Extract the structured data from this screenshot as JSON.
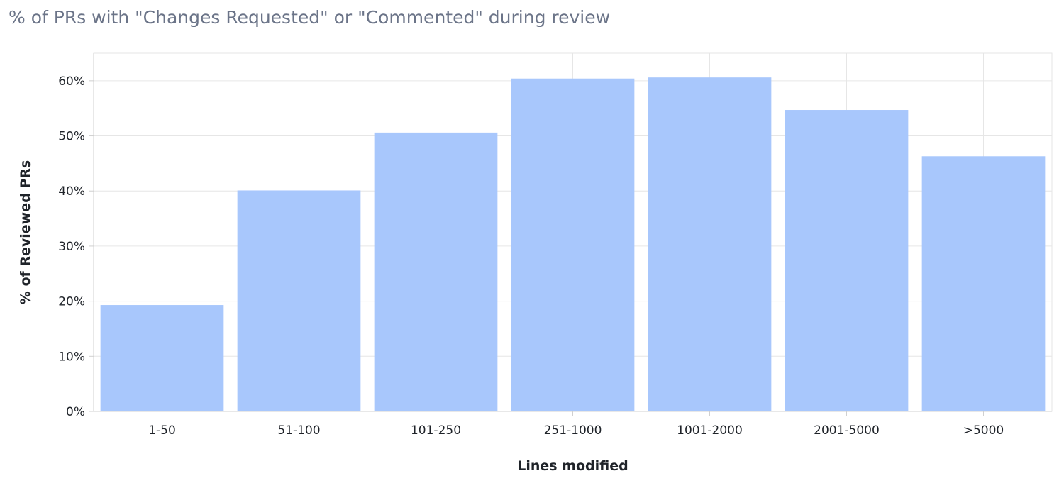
{
  "chart_data": {
    "type": "bar",
    "title": "% of PRs with \"Changes Requested\" or \"Commented\" during review",
    "xlabel": "Lines modified",
    "ylabel": "% of Reviewed PRs",
    "categories": [
      "1-50",
      "51-100",
      "101-250",
      "251-1000",
      "1001-2000",
      "2001-5000",
      ">5000"
    ],
    "values": [
      19.3,
      40.1,
      50.6,
      60.4,
      60.6,
      54.7,
      46.3
    ],
    "ylim": [
      0,
      65
    ],
    "yticks": [
      "0%",
      "10%",
      "20%",
      "30%",
      "40%",
      "50%",
      "60%"
    ],
    "ytick_values": [
      0,
      10,
      20,
      30,
      40,
      50,
      60
    ],
    "grid": true,
    "bar_color": "#a8c7fc",
    "grid_color": "#e6e6e6",
    "axis_color": "#d0d0d0"
  }
}
